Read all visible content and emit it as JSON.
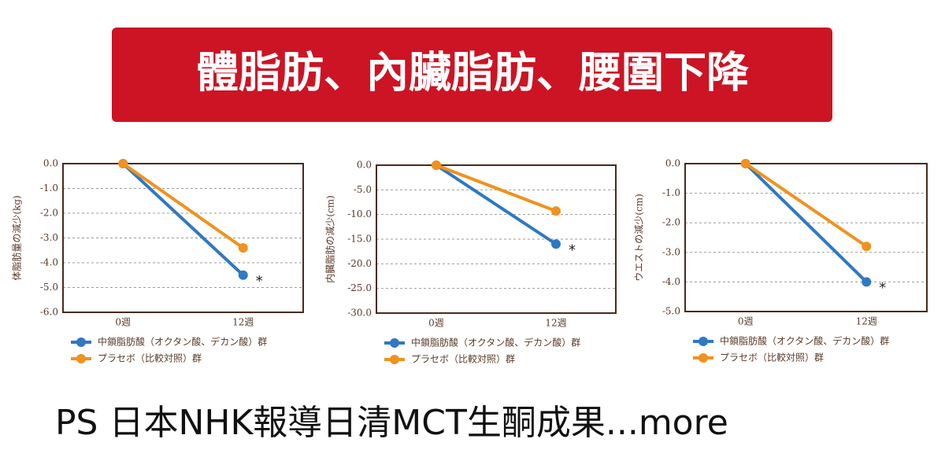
{
  "banner": "體脂肪、內臟脂肪、腰圍下降",
  "footer": "PS 日本NHK報導日清MCT生酮成果...more",
  "chart_data": [
    {
      "type": "line",
      "ylabel": "体脂肪量の減少(kg)",
      "categories": [
        "0週",
        "12週"
      ],
      "series": [
        {
          "name": "中鎖脂肪酸（オクタン酸、デカン酸）群",
          "color": "#2f78c4",
          "values": [
            0,
            -4.5
          ]
        },
        {
          "name": "プラセボ（比較対照）群",
          "color": "#f0921e",
          "values": [
            0,
            -3.4
          ]
        }
      ],
      "ylim": [
        -6,
        0
      ],
      "yticks": [
        {
          "value": 0,
          "label": "0.0"
        },
        {
          "value": -1,
          "label": "-1.0"
        },
        {
          "value": -2,
          "label": "-2.0"
        },
        {
          "value": -3,
          "label": "-3.0"
        },
        {
          "value": -4,
          "label": "-4.0"
        },
        {
          "value": -5,
          "label": "-5.0"
        },
        {
          "value": -6,
          "label": "-6.0"
        }
      ],
      "grid": true,
      "annotation": "*"
    },
    {
      "type": "line",
      "ylabel": "内臓脂肪の減少(cm)",
      "categories": [
        "0週",
        "12週"
      ],
      "series": [
        {
          "name": "中鎖脂肪酸（オクタン酸、デカン酸）群",
          "color": "#2f78c4",
          "values": [
            0,
            -16.0
          ]
        },
        {
          "name": "プラセボ（比較対照）群",
          "color": "#f0921e",
          "values": [
            0,
            -9.3
          ]
        }
      ],
      "ylim": [
        -30,
        0
      ],
      "yticks": [
        {
          "value": 0,
          "label": "0.0"
        },
        {
          "value": -5,
          "label": "-5.0"
        },
        {
          "value": -10,
          "label": "-10.0"
        },
        {
          "value": -15,
          "label": "-15.0"
        },
        {
          "value": -20,
          "label": "-20.0"
        },
        {
          "value": -25,
          "label": "-25.0"
        },
        {
          "value": -30,
          "label": "-30.0"
        }
      ],
      "grid": true,
      "annotation": "*"
    },
    {
      "type": "line",
      "ylabel": "ウエストの減少(cm)",
      "categories": [
        "0週",
        "12週"
      ],
      "series": [
        {
          "name": "中鎖脂肪酸（オクタン酸、デカン酸）群",
          "color": "#2f78c4",
          "values": [
            0,
            -4.0
          ]
        },
        {
          "name": "プラセボ（比較対照）群",
          "color": "#f0921e",
          "values": [
            0,
            -2.8
          ]
        }
      ],
      "ylim": [
        -5,
        0
      ],
      "yticks": [
        {
          "value": 0,
          "label": "0.0"
        },
        {
          "value": -1,
          "label": "-1.0"
        },
        {
          "value": -2,
          "label": "-2.0"
        },
        {
          "value": -3,
          "label": "-3.0"
        },
        {
          "value": -4,
          "label": "-4.0"
        },
        {
          "value": -5,
          "label": "-5.0"
        }
      ],
      "grid": true,
      "annotation": "*"
    }
  ]
}
